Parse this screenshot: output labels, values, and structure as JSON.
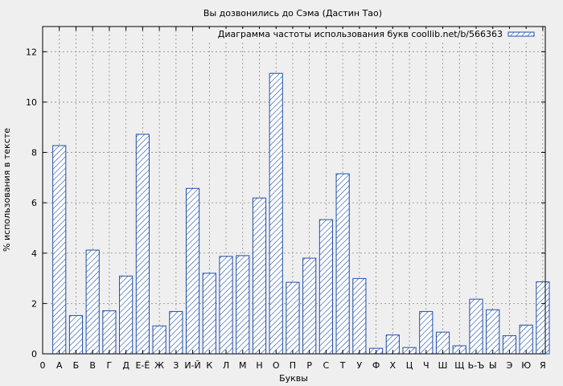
{
  "chart_data": {
    "type": "bar",
    "title": "Вы дозвонились до Сэма (Дастин Тао)",
    "xlabel": "Буквы",
    "ylabel": "% использования в тексте",
    "ylim": [
      0,
      13
    ],
    "yticks": [
      0,
      2,
      4,
      6,
      8,
      10,
      12
    ],
    "grid": true,
    "legend_position": "top-right",
    "x_origin_label": "0",
    "categories": [
      "А",
      "Б",
      "В",
      "Г",
      "Д",
      "Е-Ё",
      "Ж",
      "З",
      "И-Й",
      "К",
      "Л",
      "М",
      "Н",
      "О",
      "П",
      "Р",
      "С",
      "Т",
      "У",
      "Ф",
      "Х",
      "Ц",
      "Ч",
      "Ш",
      "Щ",
      "Ь-Ъ",
      "Ы",
      "Э",
      "Ю",
      "Я"
    ],
    "series": [
      {
        "name": "Диаграмма частоты использования букв coollib.net/b/566363",
        "color": "#1f4fa8",
        "fill": "hatch",
        "values": [
          8.27,
          1.52,
          4.12,
          1.71,
          3.09,
          8.72,
          1.11,
          1.68,
          6.57,
          3.2,
          3.87,
          3.9,
          6.19,
          11.14,
          2.84,
          3.8,
          5.33,
          7.15,
          2.99,
          0.22,
          0.75,
          0.25,
          1.68,
          0.86,
          0.32,
          2.17,
          1.75,
          0.72,
          1.14,
          2.86
        ]
      }
    ]
  }
}
